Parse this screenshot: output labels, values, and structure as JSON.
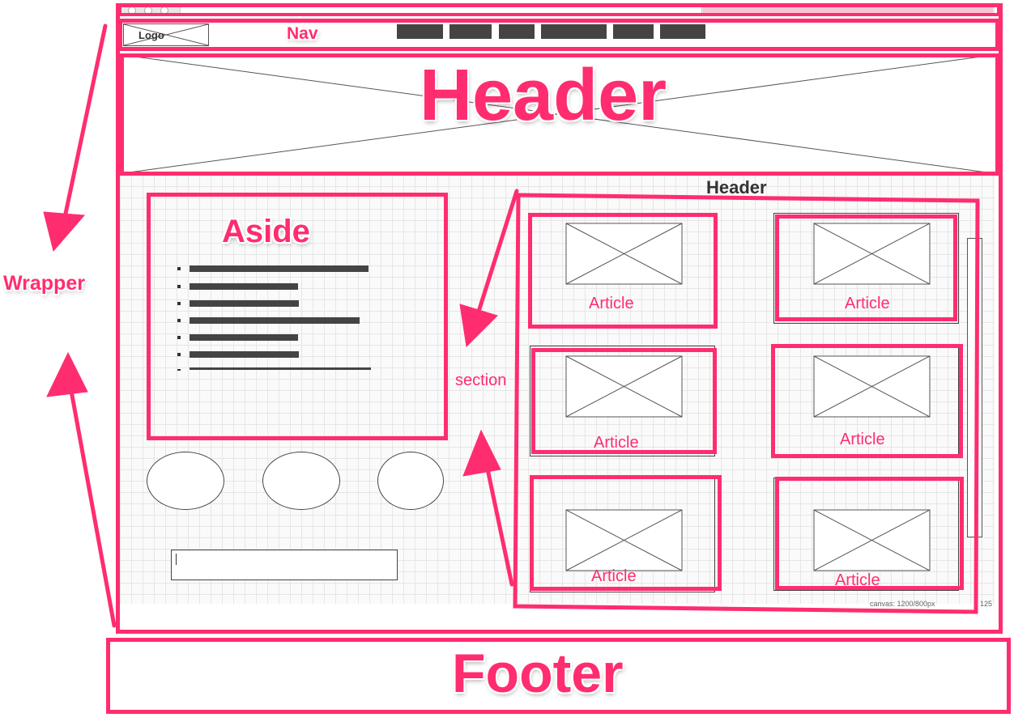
{
  "labels": {
    "logo": "Logo",
    "nav": "Nav",
    "header_big": "Header",
    "header_small": "Header",
    "aside": "Aside",
    "wrapper": "Wrapper",
    "section": "section",
    "footer": "Footer",
    "canvas_info": "canvas: 1200/800px",
    "zoom_info": ": 125"
  },
  "articles": [
    "Article",
    "Article",
    "Article",
    "Article",
    "Article",
    "Article"
  ],
  "nav_item_count": 6,
  "aside_list_item_count": 7,
  "colors": {
    "annotation": "#ff2d6f",
    "wireframe_dark": "#444444",
    "grid": "#e6e6e6"
  }
}
